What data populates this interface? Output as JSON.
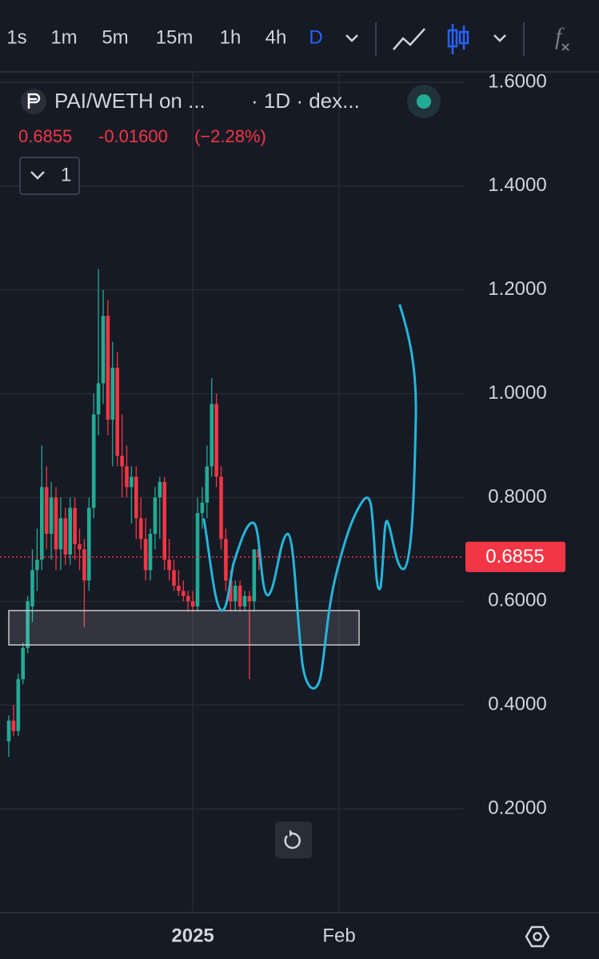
{
  "toolbar": {
    "intervals": [
      "1s",
      "1m",
      "5m",
      "15m",
      "1h",
      "4h",
      "D"
    ],
    "fx": "f"
  },
  "legend": {
    "symbol": "PAI/WETH on ...",
    "source": "· 1D · dex...",
    "change": "-0.01600",
    "change_pct": "(−2.28%)",
    "indicators": "1"
  },
  "chart_data": {
    "type": "candlestick",
    "categories": [
      null,
      null,
      null,
      null,
      null,
      null,
      null,
      null,
      null,
      null,
      null,
      null,
      null,
      null,
      null,
      null,
      null,
      null,
      null,
      null,
      null,
      null,
      null,
      null,
      null,
      null,
      null,
      null,
      null,
      null,
      null,
      null,
      null,
      null,
      null,
      null,
      null,
      null,
      null,
      "2025",
      null,
      null,
      null,
      null,
      null,
      null,
      null,
      null,
      null,
      null,
      null,
      null,
      null,
      null,
      null,
      null,
      null,
      null,
      null,
      null,
      null,
      null,
      null,
      null,
      null,
      null,
      null,
      null,
      null,
      null,
      "Feb"
    ],
    "open": [
      0.33,
      0.37,
      0.35,
      0.45,
      0.51,
      0.59,
      0.66,
      0.68,
      0.82,
      0.73,
      0.8,
      0.7,
      0.76,
      0.69,
      0.78,
      0.71,
      0.7,
      0.64,
      0.78,
      0.96,
      1.02,
      1.15,
      0.95,
      1.05,
      0.88,
      0.86,
      0.82,
      0.84,
      0.76,
      0.72,
      0.66,
      0.73,
      0.8,
      0.83,
      0.68,
      0.66,
      0.63,
      0.62,
      0.61,
      0.6,
      0.59,
      0.77,
      0.79,
      0.86,
      0.98,
      0.84,
      0.72,
      0.64,
      0.6,
      0.63,
      0.59,
      0.61,
      0.6,
      0.7,
      null,
      null,
      null,
      null,
      null,
      null,
      null,
      null,
      null,
      null,
      null,
      null,
      null,
      null,
      null,
      null,
      null
    ],
    "high": [
      0.38,
      0.4,
      0.46,
      0.52,
      0.61,
      0.7,
      0.74,
      0.9,
      0.86,
      0.83,
      0.82,
      0.8,
      0.78,
      0.8,
      0.8,
      0.74,
      0.72,
      0.8,
      1.0,
      1.24,
      1.2,
      1.18,
      1.1,
      1.08,
      0.96,
      0.9,
      0.86,
      0.86,
      0.8,
      0.76,
      0.74,
      0.82,
      0.84,
      0.84,
      0.72,
      0.68,
      0.66,
      0.64,
      0.62,
      0.62,
      0.8,
      0.82,
      0.9,
      1.03,
      1.0,
      0.86,
      0.74,
      0.66,
      0.64,
      0.64,
      0.62,
      0.62,
      0.7,
      0.71,
      null,
      null,
      null,
      null,
      null,
      null,
      null,
      null,
      null,
      null,
      null,
      null,
      null,
      null,
      null,
      null,
      null
    ],
    "low": [
      0.3,
      0.34,
      0.34,
      0.44,
      0.5,
      0.56,
      0.62,
      0.66,
      0.7,
      0.68,
      0.66,
      0.66,
      0.67,
      0.67,
      0.68,
      0.66,
      0.55,
      0.62,
      0.76,
      0.92,
      0.98,
      0.92,
      0.86,
      0.86,
      0.8,
      0.8,
      0.75,
      0.72,
      0.7,
      0.64,
      0.64,
      0.7,
      0.72,
      0.66,
      0.64,
      0.62,
      0.61,
      0.6,
      0.58,
      0.58,
      0.58,
      0.74,
      0.76,
      0.84,
      0.82,
      0.7,
      0.62,
      0.58,
      0.58,
      0.58,
      0.58,
      0.45,
      0.58,
      0.66,
      null,
      null,
      null,
      null,
      null,
      null,
      null,
      null,
      null,
      null,
      null,
      null,
      null,
      null,
      null,
      null,
      null
    ],
    "close": [
      0.37,
      0.35,
      0.45,
      0.51,
      0.6,
      0.66,
      0.68,
      0.82,
      0.73,
      0.8,
      0.7,
      0.76,
      0.69,
      0.78,
      0.71,
      0.7,
      0.64,
      0.78,
      0.96,
      1.02,
      1.15,
      0.95,
      1.05,
      0.88,
      0.86,
      0.82,
      0.84,
      0.76,
      0.72,
      0.66,
      0.73,
      0.8,
      0.83,
      0.68,
      0.66,
      0.63,
      0.62,
      0.61,
      0.6,
      0.59,
      0.77,
      0.79,
      0.86,
      0.98,
      0.84,
      0.72,
      0.64,
      0.6,
      0.63,
      0.59,
      0.61,
      0.6,
      0.7,
      0.6855,
      null,
      null,
      null,
      null,
      null,
      null,
      null,
      null,
      null,
      null,
      null,
      null,
      null,
      null,
      null,
      null,
      null
    ],
    "up_color": "#22ab94",
    "down_color": "#f23645",
    "last_price": 0.6855,
    "ylim": [
      0,
      1.62
    ],
    "yticks": [
      {
        "value": 0.2,
        "label": "0.2000"
      },
      {
        "value": 0.4,
        "label": "0.4000"
      },
      {
        "value": 0.6,
        "label": "0.6000"
      },
      {
        "value": 0.8,
        "label": "0.8000"
      },
      {
        "value": 1.0,
        "label": "1.0000"
      },
      {
        "value": 1.2,
        "label": "1.2000"
      },
      {
        "value": 1.4,
        "label": "1.4000"
      },
      {
        "value": 1.6,
        "label": "1.6000"
      }
    ],
    "grid": true
  }
}
